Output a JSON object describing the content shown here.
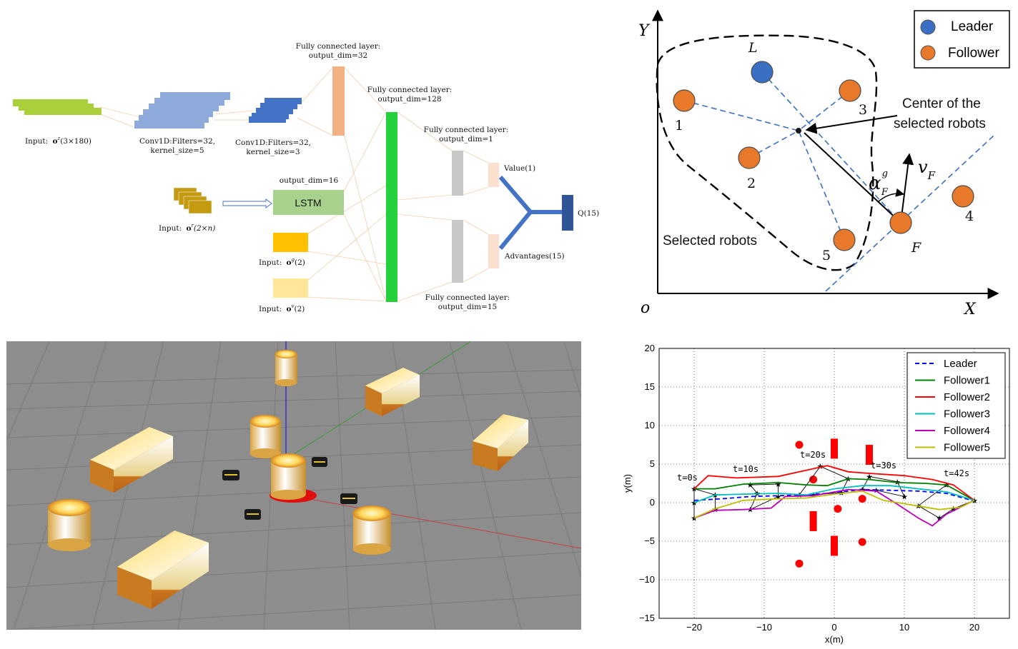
{
  "network": {
    "fc32_label_1": "Fully connected layer:",
    "fc32_label_2": "output_dim=32",
    "fc128_label_1": "Fully connected layer:",
    "fc128_label_2": "output_dim=128",
    "fc1_label_1": "Fully connected layer:",
    "fc1_label_2": "output_dim=1",
    "fc15_label_1": "Fully connected layer:",
    "fc15_label_2": "output_dim=15",
    "conv1_label_1": "Conv1D:Filters=32,",
    "conv1_label_2": "kernel_size=5",
    "conv2_label_1": "Conv1D:Filters=32,",
    "conv2_label_2": "kernel_size=3",
    "input_z_prefix": "Input:",
    "input_z_var": "o",
    "input_z_sub": "z",
    "input_z_dims": "(3×180)",
    "input_r_prefix": "Input:",
    "input_r_var": "o",
    "input_r_sub": "r",
    "input_r_dims": "(2×n)",
    "input_g_prefix": "Input:",
    "input_g_var": "o",
    "input_g_sub": "g",
    "input_g_dims": "(2)",
    "input_v_prefix": "Input:",
    "input_v_var": "o",
    "input_v_sub": "v",
    "input_v_dims": "(2)",
    "lstm_dim": "output_dim=16",
    "lstm_label": "LSTM",
    "value_label": "Value(1)",
    "adv_label": "Advantages(15)",
    "q_label": "Q(15)"
  },
  "geometry": {
    "axis_y": "Y",
    "axis_x": "X",
    "origin": "o",
    "leader_letter": "L",
    "follower_letter": "F",
    "legend_leader": "Leader",
    "legend_follower": "Follower",
    "center_line1": "Center of the",
    "center_line2": "selected robots",
    "selected_label": "Selected robots",
    "robot_labels": [
      "1",
      "2",
      "3",
      "4",
      "5"
    ],
    "v_symbol": "v",
    "v_sub": "F",
    "alpha_symbol": "α",
    "alpha_sub": "F",
    "alpha_sup": "g",
    "colors": {
      "leader": "#3b6fc4",
      "follower": "#e8782a"
    }
  },
  "sim_scene": {
    "background": "#8c8c8c",
    "grid": "#777777",
    "obstacle_color": "#e3a23a"
  },
  "chart_data": {
    "type": "line",
    "xlabel": "x(m)",
    "ylabel": "y(m)",
    "xlim": [
      -25,
      25
    ],
    "ylim": [
      -15,
      20
    ],
    "xticks": [
      "−20",
      "−10",
      "0",
      "10",
      "20"
    ],
    "yticks": [
      "20",
      "15",
      "10",
      "5",
      "0",
      "−5",
      "−10",
      "−15"
    ],
    "grid": "dotted",
    "legend_position": "top-right",
    "time_labels": [
      "t=0s",
      "t=10s",
      "t=20s",
      "t=30s",
      "t=42s"
    ],
    "series": [
      {
        "name": "Leader",
        "color": "#0000ff",
        "dash": true,
        "points": [
          [
            -20,
            0.3
          ],
          [
            -16,
            0.5
          ],
          [
            -12,
            0.8
          ],
          [
            -8,
            0.9
          ],
          [
            -4,
            1.0
          ],
          [
            0,
            1.3
          ],
          [
            4,
            1.7
          ],
          [
            8,
            1.6
          ],
          [
            12,
            1.5
          ],
          [
            16,
            1.2
          ],
          [
            20,
            0.2
          ]
        ]
      },
      {
        "name": "Follower1",
        "color": "#008000",
        "dash": false,
        "points": [
          [
            -20,
            1.8
          ],
          [
            -17,
            1.8
          ],
          [
            -13,
            2.4
          ],
          [
            -8,
            2.6
          ],
          [
            -4,
            2.3
          ],
          [
            -1,
            2.2
          ],
          [
            2,
            3.1
          ],
          [
            5,
            3.0
          ],
          [
            9,
            2.6
          ],
          [
            13,
            2.5
          ],
          [
            16,
            2.3
          ],
          [
            20,
            0.3
          ]
        ]
      },
      {
        "name": "Follower2",
        "color": "#ff0000",
        "dash": false,
        "points": [
          [
            -20,
            1.8
          ],
          [
            -18,
            3.5
          ],
          [
            -14,
            3.2
          ],
          [
            -8,
            3.4
          ],
          [
            -3,
            4.4
          ],
          [
            -1,
            4.8
          ],
          [
            2,
            4.0
          ],
          [
            5,
            3.8
          ],
          [
            10,
            3.5
          ],
          [
            14,
            3.0
          ],
          [
            17,
            2.3
          ],
          [
            20,
            0.3
          ]
        ]
      },
      {
        "name": "Follower3",
        "color": "#00bfbf",
        "dash": false,
        "points": [
          [
            -20,
            0.0
          ],
          [
            -17,
            1.0
          ],
          [
            -13,
            1.1
          ],
          [
            -8,
            1.2
          ],
          [
            -4,
            1.0
          ],
          [
            0,
            1.8
          ],
          [
            4,
            2.2
          ],
          [
            8,
            2.2
          ],
          [
            12,
            1.8
          ],
          [
            16,
            1.4
          ],
          [
            20,
            0.3
          ]
        ]
      },
      {
        "name": "Follower4",
        "color": "#bf00bf",
        "dash": false,
        "points": [
          [
            -20,
            -2.0
          ],
          [
            -17,
            -1.0
          ],
          [
            -13,
            -0.9
          ],
          [
            -9,
            -0.7
          ],
          [
            -7,
            0.8
          ],
          [
            -3,
            0.9
          ],
          [
            2,
            1.7
          ],
          [
            6,
            1.5
          ],
          [
            9,
            -0.2
          ],
          [
            12,
            -2.0
          ],
          [
            14,
            -3.0
          ],
          [
            16,
            -1.5
          ],
          [
            20,
            0.3
          ]
        ]
      },
      {
        "name": "Follower5",
        "color": "#bfbf00",
        "dash": false,
        "points": [
          [
            -20,
            -2.0
          ],
          [
            -17,
            -0.8
          ],
          [
            -13,
            0.3
          ],
          [
            -8,
            0.5
          ],
          [
            -4,
            0.6
          ],
          [
            0,
            1.1
          ],
          [
            4,
            1.5
          ],
          [
            7,
            0.3
          ],
          [
            11,
            -0.3
          ],
          [
            15,
            -0.9
          ],
          [
            18,
            -0.6
          ],
          [
            20,
            0.3
          ]
        ]
      }
    ],
    "circle_obstacles": [
      [
        -5,
        7.5
      ],
      [
        -3,
        3
      ],
      [
        4,
        0.5
      ],
      [
        0.5,
        -0.8
      ],
      [
        4,
        -5.1
      ],
      [
        -5,
        -7.9
      ]
    ],
    "rect_obstacles": [
      [
        0,
        7
      ],
      [
        5,
        6.2
      ],
      [
        -3,
        -2.4
      ],
      [
        0,
        -5.6
      ]
    ],
    "formation_times": [
      [
        [
          -20,
          1.8
        ],
        [
          -20,
          0.0
        ],
        [
          -20,
          -2.0
        ],
        [
          -17,
          -0.9
        ],
        [
          -17,
          1.0
        ]
      ],
      [
        [
          -12,
          2.3
        ],
        [
          -8,
          2.4
        ],
        [
          -8,
          0.8
        ],
        [
          -12,
          -0.9
        ],
        [
          -11,
          1.2
        ]
      ],
      [
        [
          -2,
          4.7
        ],
        [
          2,
          3.1
        ],
        [
          1,
          1.3
        ],
        [
          -3,
          1.0
        ],
        [
          -5,
          1.0
        ]
      ],
      [
        [
          5,
          3.4
        ],
        [
          9,
          2.7
        ],
        [
          10,
          0.8
        ],
        [
          6,
          1.6
        ],
        [
          4,
          1.7
        ]
      ],
      [
        [
          16,
          2.3
        ],
        [
          20,
          0.3
        ],
        [
          17,
          -0.8
        ],
        [
          15,
          -2.0
        ],
        [
          12,
          -0.4
        ]
      ]
    ]
  }
}
